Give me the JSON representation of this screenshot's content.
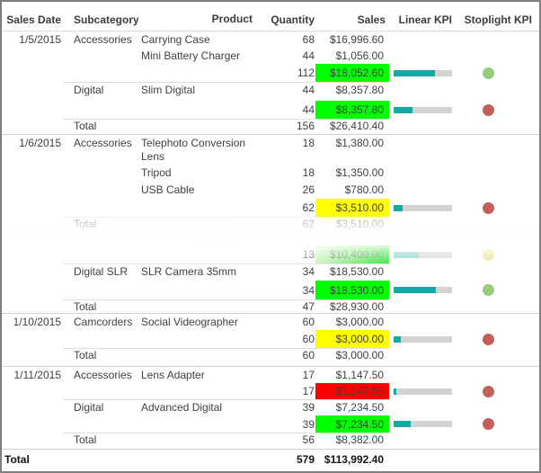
{
  "columns": [
    "Sales Date",
    "Subcategory",
    "Product",
    "Quantity",
    "Sales",
    "Linear KPI",
    "Stoplight KPI"
  ],
  "colors": {
    "cell_green": "#00FF00",
    "cell_yellow": "#FFFF00",
    "cell_red": "#FF0000",
    "cell_faded_green_start": "#C9F3BB",
    "cell_faded_green_end": "#1EE21E",
    "bar_fill": "#17A9A3",
    "bar_fill_faded": "#79C9C3",
    "bar_track": "#D3D3D3",
    "light_green": "#94CE7D",
    "light_red": "#C4605A",
    "light_yellow": "#E9DF93",
    "border": "#7F7F7F",
    "text": "#404040"
  },
  "rows": [
    {
      "type": "item",
      "date": "1/5/2015",
      "subcategory": "Accessories",
      "product": "Carrying Case",
      "quantity": "68",
      "sales": "$16,996.60",
      "line": "none"
    },
    {
      "type": "item",
      "product": "Mini Battery Charger",
      "quantity": "44",
      "sales": "$1,056.00",
      "line": "none"
    },
    {
      "type": "subtotal",
      "quantity": "112",
      "sales": "$18,052.60",
      "bg": "green",
      "kpi": 70,
      "light": "green",
      "line": "none"
    },
    {
      "type": "item",
      "subcategory": "Digital",
      "product": "Slim Digital",
      "quantity": "44",
      "sales": "$8,357.80",
      "line": "partial"
    },
    {
      "type": "subtotal",
      "quantity": "44",
      "sales": "$8,357.80",
      "bg": "green",
      "kpi": 33,
      "light": "red",
      "line": "none"
    },
    {
      "type": "total",
      "label": "Total",
      "quantity": "156",
      "sales": "$26,410.40",
      "line": "partial"
    },
    {
      "type": "item",
      "date": "1/6/2015",
      "subcategory": "Accessories",
      "product": "Telephoto Conversion Lens",
      "quantity": "18",
      "sales": "$1,380.00",
      "line": "full",
      "tall": true
    },
    {
      "type": "item",
      "product": "Tripod",
      "quantity": "18",
      "sales": "$1,350.00",
      "line": "none"
    },
    {
      "type": "item",
      "product": "USB Cable",
      "quantity": "26",
      "sales": "$780.00",
      "line": "none"
    },
    {
      "type": "subtotal",
      "quantity": "62",
      "sales": "$3,510.00",
      "bg": "yellow",
      "kpi": 15,
      "light": "red",
      "line": "none"
    },
    {
      "type": "total",
      "label": "Total",
      "quantity": "62",
      "sales": "$3,510.00",
      "line": "partial",
      "faded": true
    },
    {
      "type": "gap",
      "line": "full"
    },
    {
      "type": "subtotal",
      "quantity": "13",
      "sales": "$10,400.00",
      "bg": "fadegreen",
      "kpi": 43,
      "light": "yellow",
      "line": "none",
      "faded": true
    },
    {
      "type": "item",
      "subcategory": "Digital SLR",
      "product": "SLR Camera 35mm",
      "quantity": "34",
      "sales": "$18,530.00",
      "line": "partial"
    },
    {
      "type": "subtotal",
      "quantity": "34",
      "sales": "$18,530.00",
      "bg": "green",
      "kpi": 72,
      "light": "green",
      "line": "none"
    },
    {
      "type": "total",
      "label": "Total",
      "quantity": "47",
      "sales": "$28,930.00",
      "line": "partial"
    },
    {
      "type": "item",
      "date": "1/10/2015",
      "subcategory": "Camcorders",
      "product": "Social Videographer",
      "quantity": "60",
      "sales": "$3,000.00",
      "line": "full"
    },
    {
      "type": "subtotal",
      "quantity": "60",
      "sales": "$3,000.00",
      "bg": "yellow",
      "kpi": 12,
      "light": "red",
      "line": "none"
    },
    {
      "type": "total",
      "label": "Total",
      "quantity": "60",
      "sales": "$3,000.00",
      "line": "partial"
    },
    {
      "type": "item",
      "date": "1/11/2015",
      "subcategory": "Accessories",
      "product": "Lens Adapter",
      "quantity": "17",
      "sales": "$1,147.50",
      "line": "full"
    },
    {
      "type": "subtotal",
      "quantity": "17",
      "sales": "$1,147.50",
      "bg": "red",
      "kpi": 5,
      "light": "red",
      "line": "none"
    },
    {
      "type": "item",
      "subcategory": "Digital",
      "product": "Advanced Digital",
      "quantity": "39",
      "sales": "$7,234.50",
      "line": "partial"
    },
    {
      "type": "subtotal",
      "quantity": "39",
      "sales": "$7,234.50",
      "bg": "green",
      "kpi": 29,
      "light": "red",
      "line": "none"
    },
    {
      "type": "total",
      "label": "Total",
      "quantity": "56",
      "sales": "$8,382.00",
      "line": "partial"
    },
    {
      "type": "grand",
      "label": "Total",
      "quantity": "579",
      "sales": "$113,992.40",
      "line": "full"
    }
  ]
}
